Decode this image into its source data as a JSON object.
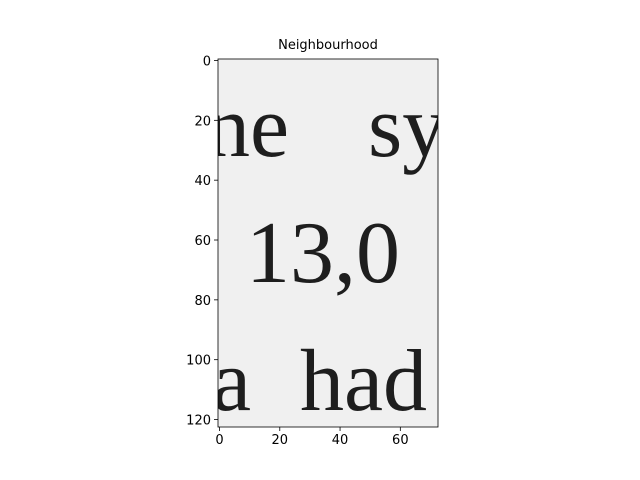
{
  "chart_data": {
    "type": "image",
    "title": "Neighbourhood",
    "xlim": [
      -0.5,
      72.5
    ],
    "ylim": [
      122.5,
      -0.5
    ],
    "xticks": [
      0,
      20,
      40,
      60
    ],
    "yticks": [
      0,
      20,
      40,
      60,
      80,
      100,
      120
    ],
    "background": "#f0f0f0",
    "ink": "#1e1e1e",
    "image_text": [
      [
        "ne",
        "sy"
      ],
      [
        "13,0"
      ],
      [
        "a",
        "had"
      ]
    ]
  }
}
